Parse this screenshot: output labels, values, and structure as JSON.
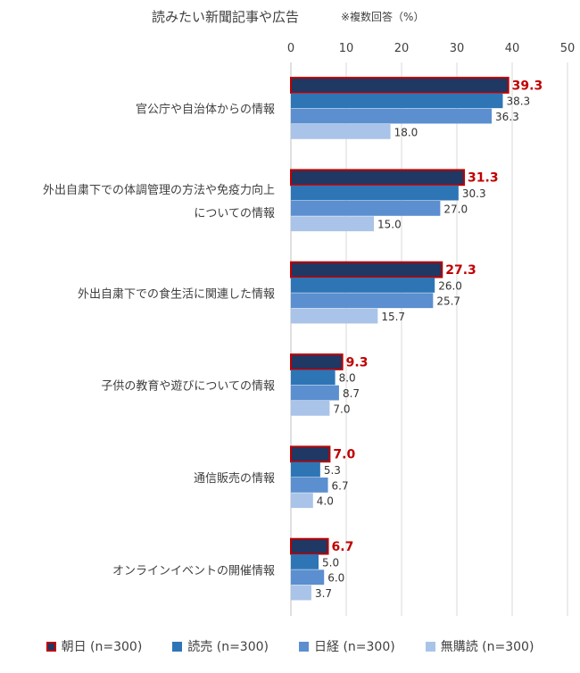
{
  "title": "読みたい新聞記事や広告",
  "note": "※複数回答（%）",
  "chart_data": {
    "type": "bar",
    "orientation": "horizontal",
    "xlim": [
      0,
      50
    ],
    "ticks": [
      0,
      10,
      20,
      30,
      40,
      50
    ],
    "grid": true,
    "legend_position": "bottom",
    "categories": [
      [
        "官公庁や自治体からの情報"
      ],
      [
        "外出自粛下での体調管理の方法や免疫力向上",
        "についての情報"
      ],
      [
        "外出自粛下での食生活に関連した情報"
      ],
      [
        "子供の教育や遊びについての情報"
      ],
      [
        "通信販売の情報"
      ],
      [
        "オンラインイベントの開催情報"
      ]
    ],
    "series": [
      {
        "name": "朝日 (n=300)",
        "values": [
          39.3,
          31.3,
          27.3,
          9.3,
          7.0,
          6.7
        ],
        "color": "#1f3864",
        "highlight": true
      },
      {
        "name": "読売 (n=300)",
        "values": [
          38.3,
          30.3,
          26.0,
          8.0,
          5.3,
          5.0
        ],
        "color": "#2e75b6",
        "highlight": false
      },
      {
        "name": "日経 (n=300)",
        "values": [
          36.3,
          27.0,
          25.7,
          8.7,
          6.7,
          6.0
        ],
        "color": "#5b8fd0",
        "highlight": false
      },
      {
        "name": "無購読 (n=300)",
        "values": [
          18.0,
          15.0,
          15.7,
          7.0,
          4.0,
          3.7
        ],
        "color": "#a9c4e8",
        "highlight": false
      }
    ],
    "highlight_border_color": "#c00000"
  }
}
